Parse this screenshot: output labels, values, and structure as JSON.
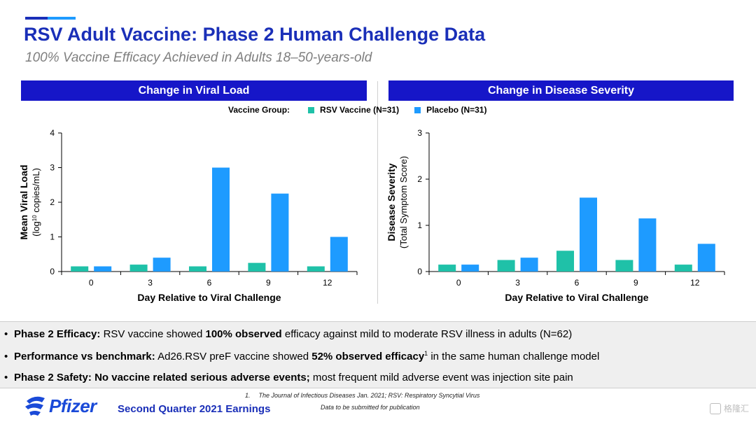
{
  "header": {
    "title": "RSV Adult Vaccine: Phase 2 Human Challenge Data",
    "subtitle": "100% Vaccine Efficacy Achieved in Adults 18–50-years-old"
  },
  "colors": {
    "brand_blue": "#1a2fb8",
    "header_bar": "#1616c8",
    "rsv_vaccine": "#1fc1a8",
    "placebo": "#1e9bff"
  },
  "legend": {
    "label": "Vaccine Group:",
    "items": [
      {
        "name": "RSV Vaccine (N=31)",
        "color": "#1fc1a8"
      },
      {
        "name": "Placebo (N=31)",
        "color": "#1e9bff"
      }
    ]
  },
  "chart_data": [
    {
      "type": "bar",
      "title": "Change in Viral Load",
      "xlabel": "Day Relative to Viral Challenge",
      "ylabel_line1": "Mean Viral Load",
      "ylabel_line2_pre": "(log",
      "ylabel_line2_sup": "10",
      "ylabel_line2_post": " copies/mL)",
      "categories": [
        "0",
        "3",
        "6",
        "9",
        "12"
      ],
      "ylim": [
        0,
        4
      ],
      "yticks": [
        "0",
        "1",
        "2",
        "3",
        "4"
      ],
      "series": [
        {
          "name": "RSV Vaccine (N=31)",
          "values": [
            0.15,
            0.2,
            0.15,
            0.25,
            0.15
          ]
        },
        {
          "name": "Placebo (N=31)",
          "values": [
            0.15,
            0.4,
            3.0,
            2.25,
            1.0
          ]
        }
      ]
    },
    {
      "type": "bar",
      "title": "Change in Disease Severity",
      "xlabel": "Day Relative to Viral Challenge",
      "ylabel_line1": "Disease Severity",
      "ylabel_line2_pre": "(Total Symptom Score)",
      "ylabel_line2_sup": "",
      "ylabel_line2_post": "",
      "categories": [
        "0",
        "3",
        "6",
        "9",
        "12"
      ],
      "ylim": [
        0,
        3
      ],
      "yticks": [
        "0",
        "1",
        "2",
        "3"
      ],
      "series": [
        {
          "name": "RSV Vaccine (N=31)",
          "values": [
            0.15,
            0.25,
            0.45,
            0.25,
            0.15
          ]
        },
        {
          "name": "Placebo (N=31)",
          "values": [
            0.15,
            0.3,
            1.6,
            1.15,
            0.6
          ]
        }
      ]
    }
  ],
  "bullets": [
    {
      "bold1": "Phase 2 Efficacy:",
      "text1": " RSV vaccine showed ",
      "bold2": "100% observed",
      "text2": " efficacy against mild to moderate RSV illness in adults (N=62)",
      "sup": ""
    },
    {
      "bold1": "Performance vs benchmark:",
      "text1": " Ad26.RSV preF vaccine showed ",
      "bold2": "52% observed efficacy",
      "sup": "1",
      "text2": " in the same human challenge model"
    },
    {
      "bold1": "Phase 2 Safety:",
      "text1": " ",
      "bold2": "No vaccine related serious adverse events;",
      "text2": " most frequent mild adverse event was injection site pain",
      "sup": ""
    }
  ],
  "footnotes": {
    "line1_num": "1.",
    "line1": "The Journal of Infectious Diseases Jan. 2021; RSV: Respiratory Syncytial Virus",
    "line2": "Data to be submitted for publication"
  },
  "footer": {
    "logo_text": "Pfizer",
    "earnings": "Second Quarter 2021 Earnings",
    "watermark": "格隆汇"
  }
}
